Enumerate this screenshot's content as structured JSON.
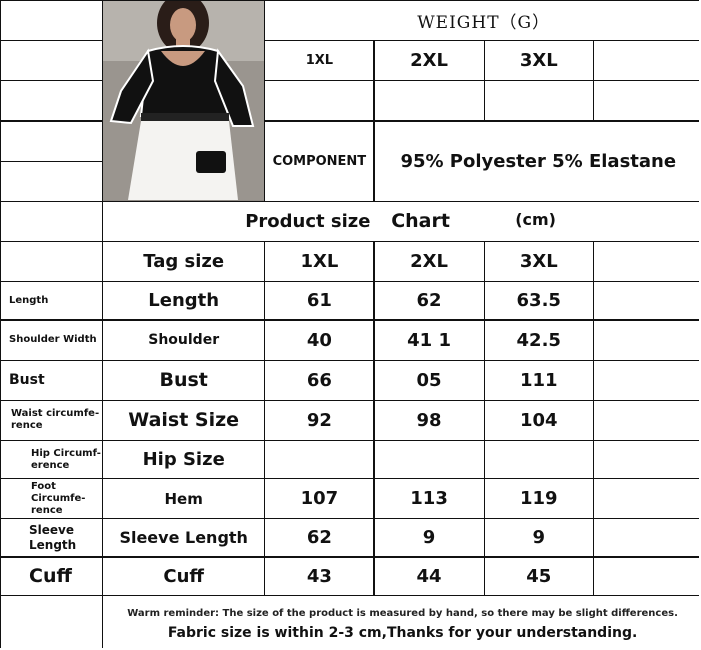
{
  "header": {
    "weight_title": "WEIGHT（G）",
    "sizes": [
      "1XL",
      "2XL",
      "3XL"
    ],
    "component_label": "COMPONENT",
    "component_value": "95% Polyester 5% Elastane"
  },
  "chart_title": {
    "part1": "Product size",
    "part2": "Chart",
    "unit": "(cm)"
  },
  "tag_row": {
    "label": "Tag size",
    "sizes": [
      "1XL",
      "2XL",
      "3XL"
    ]
  },
  "rows": [
    {
      "left": "Length",
      "label": "Length",
      "values": [
        "61",
        "62",
        "63.5"
      ]
    },
    {
      "left": "Shoulder Width",
      "label": "Shoulder",
      "values": [
        "40",
        "41 1",
        "42.5"
      ]
    },
    {
      "left": "Bust",
      "label": "Bust",
      "values": [
        "66",
        "05",
        "111"
      ]
    },
    {
      "left": "Waist circumfe-rence",
      "label": "Waist Size",
      "values": [
        "92",
        "98",
        "104"
      ]
    },
    {
      "left": "Hip Circumf-erence",
      "label": "Hip Size",
      "values": [
        "",
        "",
        ""
      ]
    },
    {
      "left": "Foot Circumfe-rence",
      "label": "Hem",
      "values": [
        "107",
        "113",
        "119"
      ]
    },
    {
      "left": "Sleeve Length",
      "label": "Sleeve Length",
      "values": [
        "62",
        "9",
        "9"
      ]
    },
    {
      "left": "Cuff",
      "label": "Cuff",
      "values": [
        "43",
        "44",
        "45"
      ]
    }
  ],
  "footer": {
    "line1": "Warm reminder: The size of the product is measured by hand, so there may be slight differences.",
    "line2": "Fabric size is within 2-3 cm,Thanks for your understanding."
  }
}
